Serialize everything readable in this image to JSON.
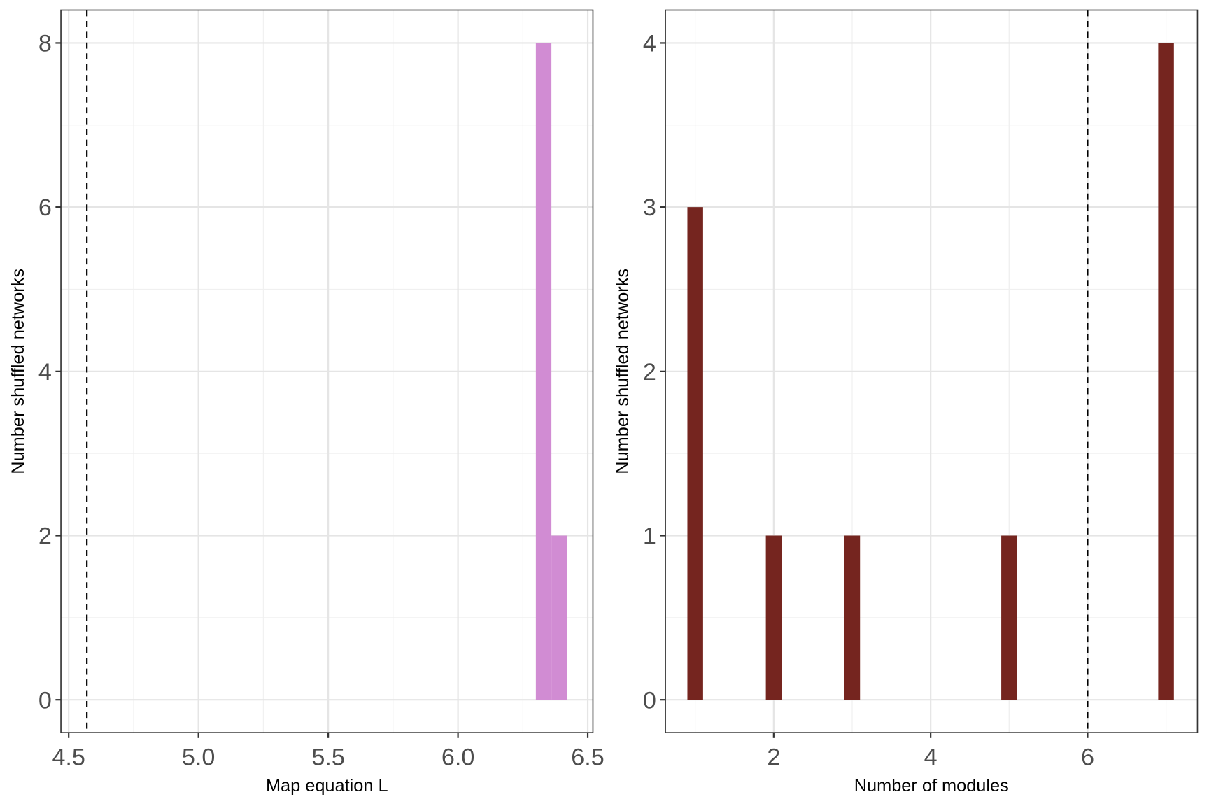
{
  "chart_data": [
    {
      "type": "bar",
      "subtype": "histogram",
      "xlabel": "Map equation L",
      "ylabel": "Number shuffled networks",
      "xlim": [
        4.47,
        6.52
      ],
      "ylim": [
        -0.4,
        8.4
      ],
      "xticks": [
        "4.5",
        "5.0",
        "5.5",
        "6.0",
        "6.5"
      ],
      "xtick_values": [
        4.5,
        5.0,
        5.5,
        6.0,
        6.5
      ],
      "yticks": [
        "0",
        "2",
        "4",
        "6",
        "8"
      ],
      "ytick_values": [
        0,
        2,
        4,
        6,
        8
      ],
      "bins": [
        {
          "x0": 6.3,
          "x1": 6.36,
          "count": 8
        },
        {
          "x0": 6.36,
          "x1": 6.42,
          "count": 2
        }
      ],
      "reference_line": 4.57,
      "color": "#D18CD3",
      "grid": true
    },
    {
      "type": "bar",
      "subtype": "histogram",
      "xlabel": "Number of modules",
      "ylabel": "Number shuffled networks",
      "xlim": [
        0.62,
        7.4
      ],
      "ylim": [
        -0.2,
        4.2
      ],
      "xticks": [
        "2",
        "4",
        "6"
      ],
      "xtick_values": [
        2,
        4,
        6
      ],
      "yticks": [
        "0",
        "1",
        "2",
        "3",
        "4"
      ],
      "ytick_values": [
        0,
        1,
        2,
        3,
        4
      ],
      "bins": [
        {
          "x": 1,
          "count": 3
        },
        {
          "x": 2,
          "count": 1
        },
        {
          "x": 3,
          "count": 1
        },
        {
          "x": 5,
          "count": 1
        },
        {
          "x": 7,
          "count": 4
        }
      ],
      "bin_width": 0.2,
      "reference_line": 6,
      "color": "#75251F",
      "grid": true
    }
  ]
}
